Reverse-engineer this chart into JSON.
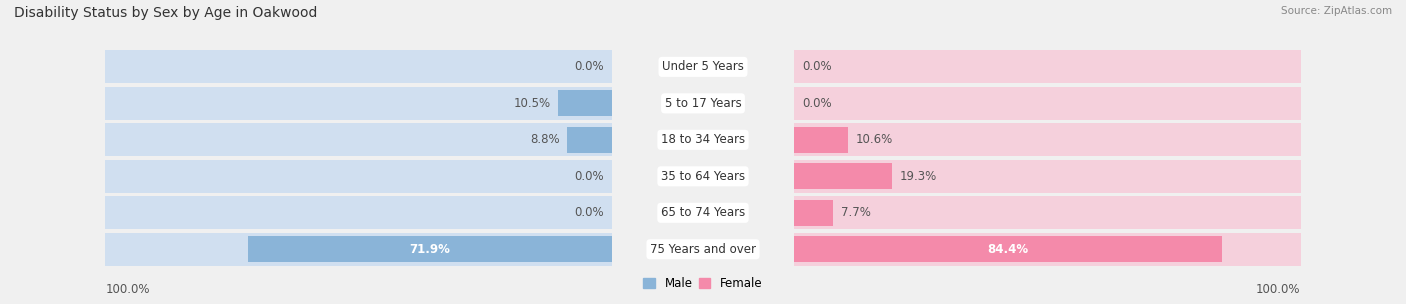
{
  "title": "Disability Status by Sex by Age in Oakwood",
  "source": "Source: ZipAtlas.com",
  "categories": [
    "Under 5 Years",
    "5 to 17 Years",
    "18 to 34 Years",
    "35 to 64 Years",
    "65 to 74 Years",
    "75 Years and over"
  ],
  "male_values": [
    0.0,
    10.5,
    8.8,
    0.0,
    0.0,
    71.9
  ],
  "female_values": [
    0.0,
    0.0,
    10.6,
    19.3,
    7.7,
    84.4
  ],
  "male_color": "#8ab4d8",
  "female_color": "#f48aaa",
  "male_bg_color": "#d0dff0",
  "female_bg_color": "#f5d0dc",
  "row_bg_color": "#e8e8e8",
  "background_color": "#f0f0f0",
  "xlim": 100.0,
  "title_fontsize": 10,
  "label_fontsize": 8.5,
  "tick_fontsize": 8.5,
  "cat_fontsize": 8.5,
  "bar_height": 0.72,
  "fig_width": 14.06,
  "fig_height": 3.04,
  "dpi": 100
}
